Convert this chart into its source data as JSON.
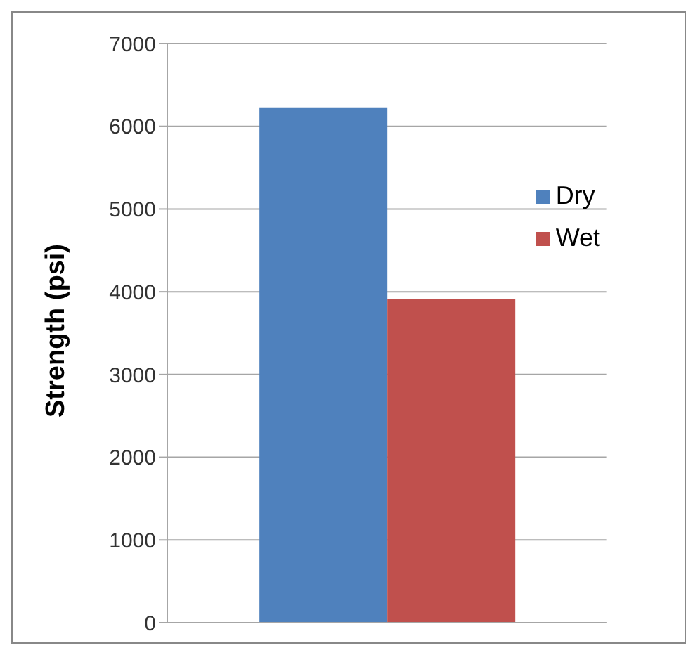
{
  "chart_data": {
    "type": "bar",
    "ylabel": "Strength (psi)",
    "categories": [
      null
    ],
    "series": [
      {
        "name": "Dry",
        "color": "#4f81bd",
        "values": [
          6230
        ]
      },
      {
        "name": "Wet",
        "color": "#c0504d",
        "values": [
          3910
        ]
      }
    ],
    "ylim": [
      0,
      7000
    ],
    "yticks": [
      0,
      1000,
      2000,
      3000,
      4000,
      5000,
      6000,
      7000
    ],
    "grid": "y",
    "legend": "top right"
  }
}
